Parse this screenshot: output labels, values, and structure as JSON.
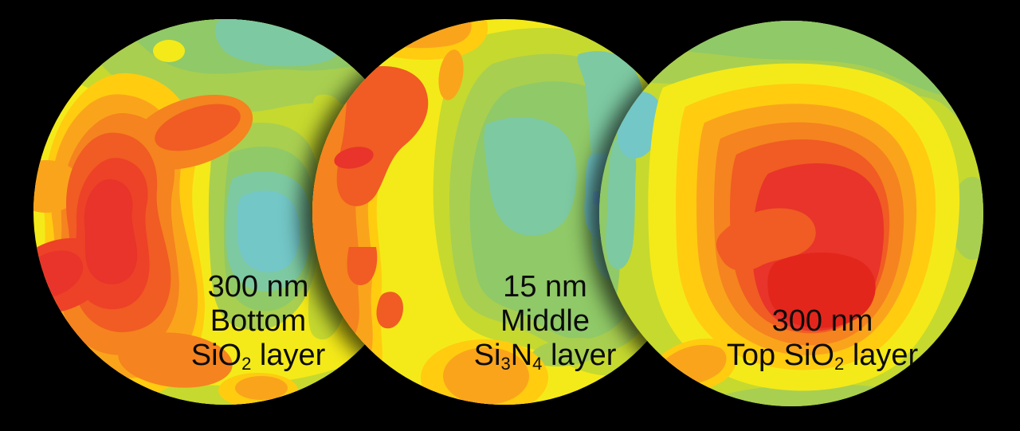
{
  "background_color": "#000000",
  "text_color": "#0b0b0b",
  "chart_data": {
    "type": "heatmap",
    "subtype": "wafer_thickness_contour_maps",
    "layout": "three overlapping circular wafer contour maps on a black background, stacked left to right with drop shadows between them",
    "legend": "none visible (no colorbar, no axes)",
    "palette_cold_to_hot": [
      {
        "name": "blue",
        "hex": "#6CB9E2"
      },
      {
        "name": "teal",
        "hex": "#73C7C6"
      },
      {
        "name": "teal-green",
        "hex": "#7DC9A2"
      },
      {
        "name": "green",
        "hex": "#90C967"
      },
      {
        "name": "light-green",
        "hex": "#A9CF50"
      },
      {
        "name": "yellow-green",
        "hex": "#C6D92F"
      },
      {
        "name": "yellow",
        "hex": "#F4EA19"
      },
      {
        "name": "gold",
        "hex": "#FFCC10"
      },
      {
        "name": "amber",
        "hex": "#FAA41C"
      },
      {
        "name": "orange",
        "hex": "#F5831F"
      },
      {
        "name": "deep-orange",
        "hex": "#F05C23"
      },
      {
        "name": "red-orange",
        "hex": "#ED4227"
      },
      {
        "name": "red",
        "hex": "#E8342A"
      },
      {
        "name": "deep-red",
        "hex": "#E3261C"
      }
    ],
    "wafers": [
      {
        "id": "bottom-sio2",
        "thickness": "300 nm",
        "position": "Bottom",
        "material": "SiO2",
        "label_lines": [
          [
            {
              "t": "300 nm"
            }
          ],
          [
            {
              "t": "Bottom"
            }
          ],
          [
            {
              "t": "SiO"
            },
            {
              "t": "2",
              "sub": true
            },
            {
              "t": " layer"
            }
          ]
        ],
        "pattern": "hot red/orange ridge along the left side with an elongated red core and a red lobe reaching the lower-left rim; amber notch on the left rim; green band across the top; cool teal pocket just right of center surrounded by green; yellow and yellow-green over the right and bottom"
      },
      {
        "id": "middle-si3n4",
        "thickness": "15 nm",
        "position": "Middle",
        "material": "Si3N4",
        "label_lines": [
          [
            {
              "t": "15 nm"
            }
          ],
          [
            {
              "t": "Middle"
            }
          ],
          [
            {
              "t": "Si"
            },
            {
              "t": "3",
              "sub": true
            },
            {
              "t": "N"
            },
            {
              "t": "4",
              "sub": true
            },
            {
              "t": " layer"
            }
          ]
        ],
        "pattern": "hot orange band hugging the left rim with a red-orange blob and small bright-red spot near the upper-left, two small deep-orange blobs lower-left; amber band along the top rim; broad cool green basin across the center-right with teal patches and a tiny blue patch; amber/gold blob at bottom center"
      },
      {
        "id": "top-sio2",
        "thickness": "300 nm",
        "position": "Top",
        "material": "SiO2",
        "label_lines": [
          [
            {
              "t": "300 nm"
            }
          ],
          [
            {
              "t": "Top SiO"
            },
            {
              "t": "2",
              "sub": true
            },
            {
              "t": " layer"
            }
          ]
        ],
        "pattern": "bullseye gradient: large irregular red hot core right of center with an orange swirl tongue and deep-red inner zone, surrounded by concentric deep-orange, orange, amber, gold and yellow rings cooling to yellow-green and green at the rim; teal patches on the upper-left rim; small green patch on the right rim"
      }
    ]
  }
}
